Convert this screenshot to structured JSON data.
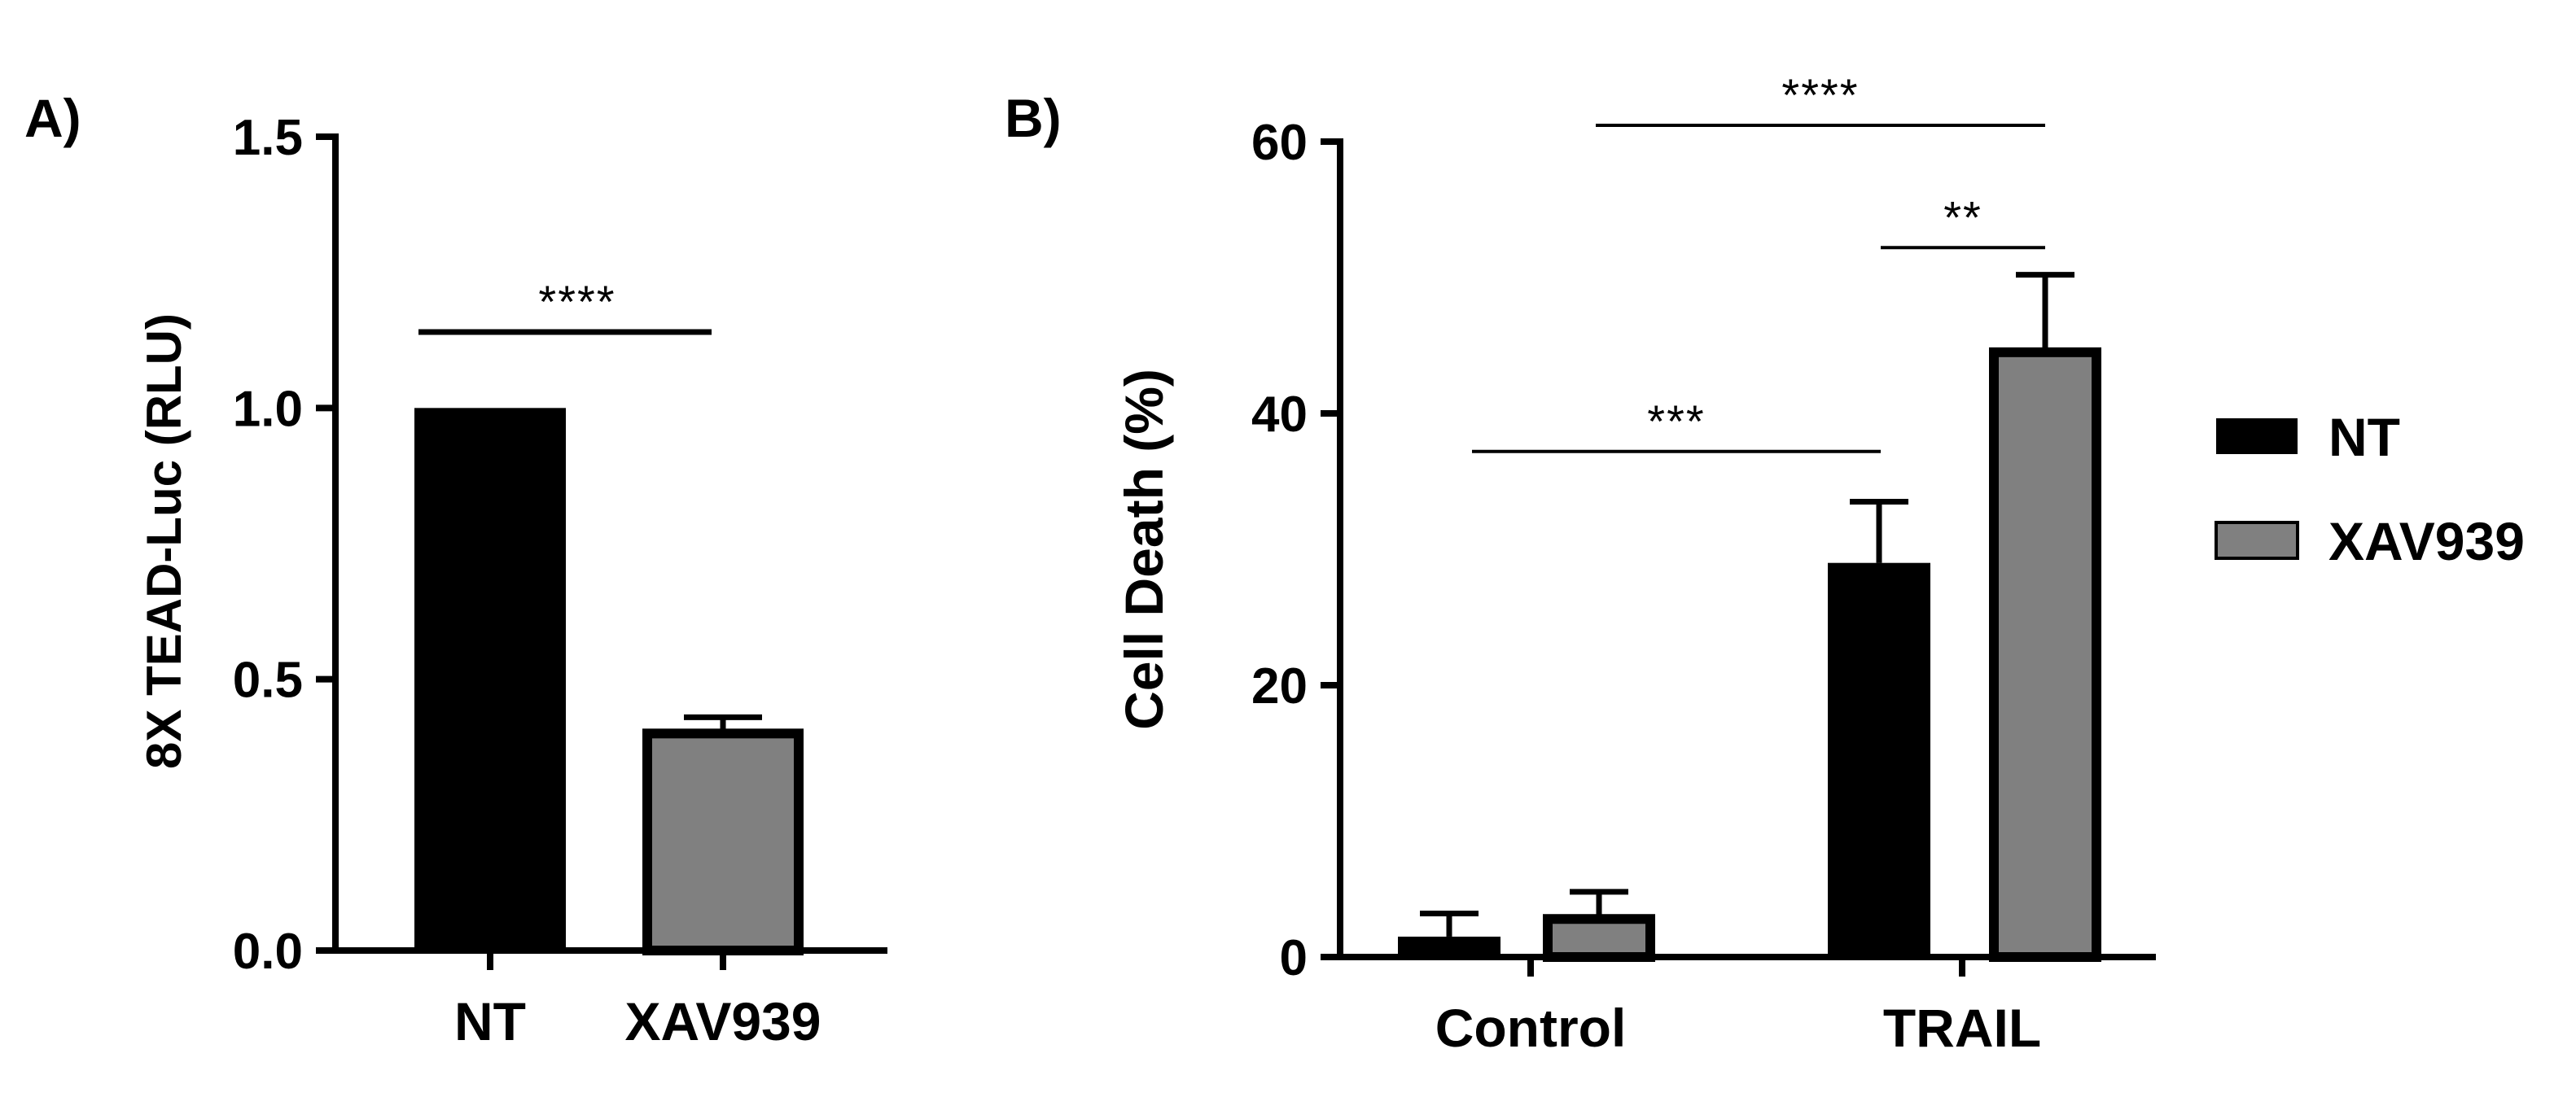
{
  "chart_data": [
    {
      "type": "bar",
      "panel_label": "A)",
      "ylabel": "8X TEAD-Luc (RLU)",
      "categories": [
        "NT",
        "XAV939"
      ],
      "values": [
        1.0,
        0.4
      ],
      "errors": [
        0,
        0.03
      ],
      "colors": [
        "#000000",
        "#808080"
      ],
      "ylim": [
        0,
        1.5
      ],
      "yticks": [
        0,
        0.5,
        1.0,
        1.5
      ],
      "ytick_labels": [
        "0.0",
        "0.5",
        "1.0",
        "1.5"
      ],
      "significance": [
        {
          "from": 0,
          "to": 1,
          "label": "****",
          "y": 1.14
        }
      ],
      "grid": false
    },
    {
      "type": "bar",
      "panel_label": "B)",
      "ylabel": "Cell Death (%)",
      "categories": [
        "Control",
        "TRAIL"
      ],
      "series": [
        {
          "name": "NT",
          "color": "#000000",
          "values": [
            1.5,
            29
          ],
          "errors": [
            1.7,
            4.5
          ]
        },
        {
          "name": "XAV939",
          "color": "#808080",
          "values": [
            2.8,
            44.5
          ],
          "errors": [
            2.0,
            5.7
          ]
        }
      ],
      "ylim": [
        0,
        60
      ],
      "yticks": [
        0,
        20,
        40,
        60
      ],
      "ytick_labels": [
        "0",
        "20",
        "40",
        "60"
      ],
      "significance": [
        {
          "from": [
            0,
            0
          ],
          "to": [
            1,
            0
          ],
          "label": "***",
          "y": 37.2
        },
        {
          "from": [
            1,
            0
          ],
          "to": [
            1,
            1
          ],
          "label": "**",
          "y": 52.2
        },
        {
          "from": [
            0,
            1
          ],
          "to": [
            1,
            1
          ],
          "label": "****",
          "y": 61.2
        }
      ],
      "legend": {
        "placement": "right",
        "entries": [
          "NT",
          "XAV939"
        ]
      },
      "grid": false
    }
  ]
}
